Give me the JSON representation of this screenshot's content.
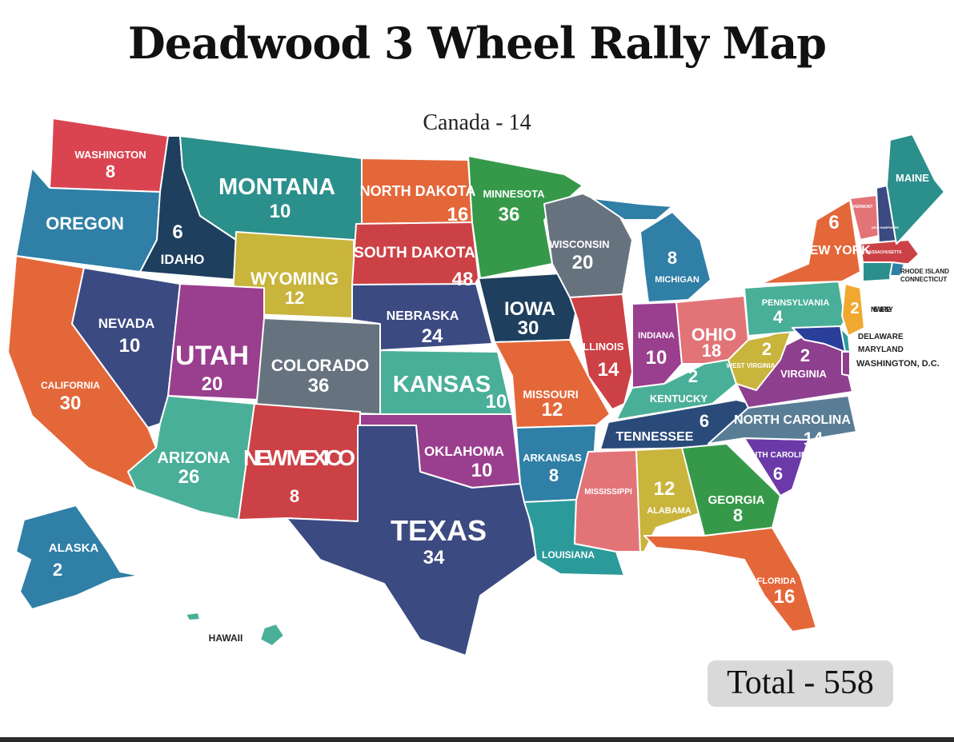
{
  "title": "Deadwood 3 Wheel Rally Map",
  "canada": "Canada - 14",
  "total": "Total - 558",
  "states": {
    "washington": {
      "name": "WASHINGTON",
      "count": "8",
      "color": "#d94450"
    },
    "oregon": {
      "name": "OREGON",
      "color": "#2f7fa6"
    },
    "california": {
      "name": "CALIFORNIA",
      "count": "30",
      "color": "#e4673a"
    },
    "idaho": {
      "name": "IDAHO",
      "count": "6",
      "color": "#1e3f5e"
    },
    "nevada": {
      "name": "NEVADA",
      "count": "10",
      "color": "#3c4a82"
    },
    "montana": {
      "name": "MONTANA",
      "count": "10",
      "color": "#2b8f8c"
    },
    "wyoming": {
      "name": "WYOMING",
      "count": "12",
      "color": "#c9b43c"
    },
    "utah": {
      "name": "UTAH",
      "count": "20",
      "color": "#9a3e8e"
    },
    "colorado": {
      "name": "COLORADO",
      "count": "36",
      "color": "#66737f"
    },
    "arizona": {
      "name": "ARIZONA",
      "count": "26",
      "color": "#4aaf98"
    },
    "new_mexico": {
      "name": "NEW MEXICO",
      "count": "8",
      "color": "#cc4146"
    },
    "north_dakota": {
      "name": "NORTH DAKOTA",
      "count": "16",
      "color": "#e4673a"
    },
    "south_dakota": {
      "name": "SOUTH DAKOTA",
      "count": "48",
      "color": "#cc4146"
    },
    "nebraska": {
      "name": "NEBRASKA",
      "count": "24",
      "color": "#3c4a82"
    },
    "kansas": {
      "name": "KANSAS",
      "count": "10",
      "color": "#4aaf98"
    },
    "oklahoma": {
      "name": "OKLAHOMA",
      "count": "10",
      "color": "#9a3e8e"
    },
    "texas": {
      "name": "TEXAS",
      "count": "34",
      "color": "#3c4a82"
    },
    "minnesota": {
      "name": "MINNESOTA",
      "count": "36",
      "color": "#36994a"
    },
    "iowa": {
      "name": "IOWA",
      "count": "30",
      "color": "#1e3f5e"
    },
    "missouri": {
      "name": "MISSOURI",
      "count": "12",
      "color": "#e4673a"
    },
    "arkansas": {
      "name": "ARKANSAS",
      "count": "8",
      "color": "#2f7fa6"
    },
    "louisiana": {
      "name": "LOUISIANA",
      "color": "#2b9a9a"
    },
    "wisconsin": {
      "name": "WISCONSIN",
      "count": "20",
      "color": "#66737f"
    },
    "illinois": {
      "name": "ILLINOIS",
      "count": "14",
      "color": "#cc4146"
    },
    "michigan": {
      "name": "MICHIGAN",
      "count": "8",
      "color": "#2f7fa6"
    },
    "indiana": {
      "name": "INDIANA",
      "count": "10",
      "color": "#9a3e8e"
    },
    "ohio": {
      "name": "OHIO",
      "count": "18",
      "color": "#e27478"
    },
    "kentucky": {
      "name": "KENTUCKY",
      "count": "2",
      "color": "#4aaf98"
    },
    "tennessee": {
      "name": "TENNESSEE",
      "count": "6",
      "color": "#2a4a7a"
    },
    "mississippi": {
      "name": "MISSISSIPPI",
      "color": "#e27478"
    },
    "alabama": {
      "name": "ALABAMA",
      "count": "12",
      "color": "#c9b43c"
    },
    "georgia": {
      "name": "GEORGIA",
      "count": "8",
      "color": "#36994a"
    },
    "florida": {
      "name": "FLORIDA",
      "count": "16",
      "color": "#e4673a"
    },
    "south_carolina": {
      "name": "SOUTH CAROLINA",
      "count": "6",
      "color": "#6b3aa8"
    },
    "north_carolina": {
      "name": "NORTH CAROLINA",
      "count": "14",
      "color": "#5a7d96"
    },
    "virginia": {
      "name": "VIRGINIA",
      "count": "2",
      "color": "#8e3f8e"
    },
    "west_virginia": {
      "name": "WEST VIRGINIA",
      "count": "2",
      "color": "#c9b43c"
    },
    "pennsylvania": {
      "name": "PENNSYLVANIA",
      "count": "4",
      "color": "#4aaf98"
    },
    "new_york": {
      "name": "NEW YORK",
      "count": "6",
      "color": "#e4673a"
    },
    "new_jersey": {
      "name": "NEW JERSEY",
      "count": "2",
      "color": "#f0a830"
    },
    "delaware": {
      "name": "DELAWARE",
      "color": "#2b9a9a"
    },
    "maryland": {
      "name": "MARYLAND",
      "color": "#2a3f9a"
    },
    "washington_dc": {
      "name": "WASHINGTON, D.C.",
      "color": "#8e3f8e"
    },
    "vermont": {
      "name": "VERMONT",
      "color": "#e27478"
    },
    "new_hampshire": {
      "name": "NEW HAMPSHIRE",
      "color": "#3c4a82"
    },
    "massachusetts": {
      "name": "MASSACHUSETTS",
      "color": "#cc4146"
    },
    "rhode_island": {
      "name": "RHODE ISLAND",
      "color": "#2f7fa6"
    },
    "connecticut": {
      "name": "CONNECTICUT",
      "color": "#2b8f8c"
    },
    "maine": {
      "name": "MAINE",
      "color": "#2b8f8c"
    },
    "alaska": {
      "name": "ALASKA",
      "count": "2",
      "color": "#2f7fa6"
    },
    "hawaii": {
      "name": "HAWAII",
      "color": "#4aaf98"
    }
  }
}
